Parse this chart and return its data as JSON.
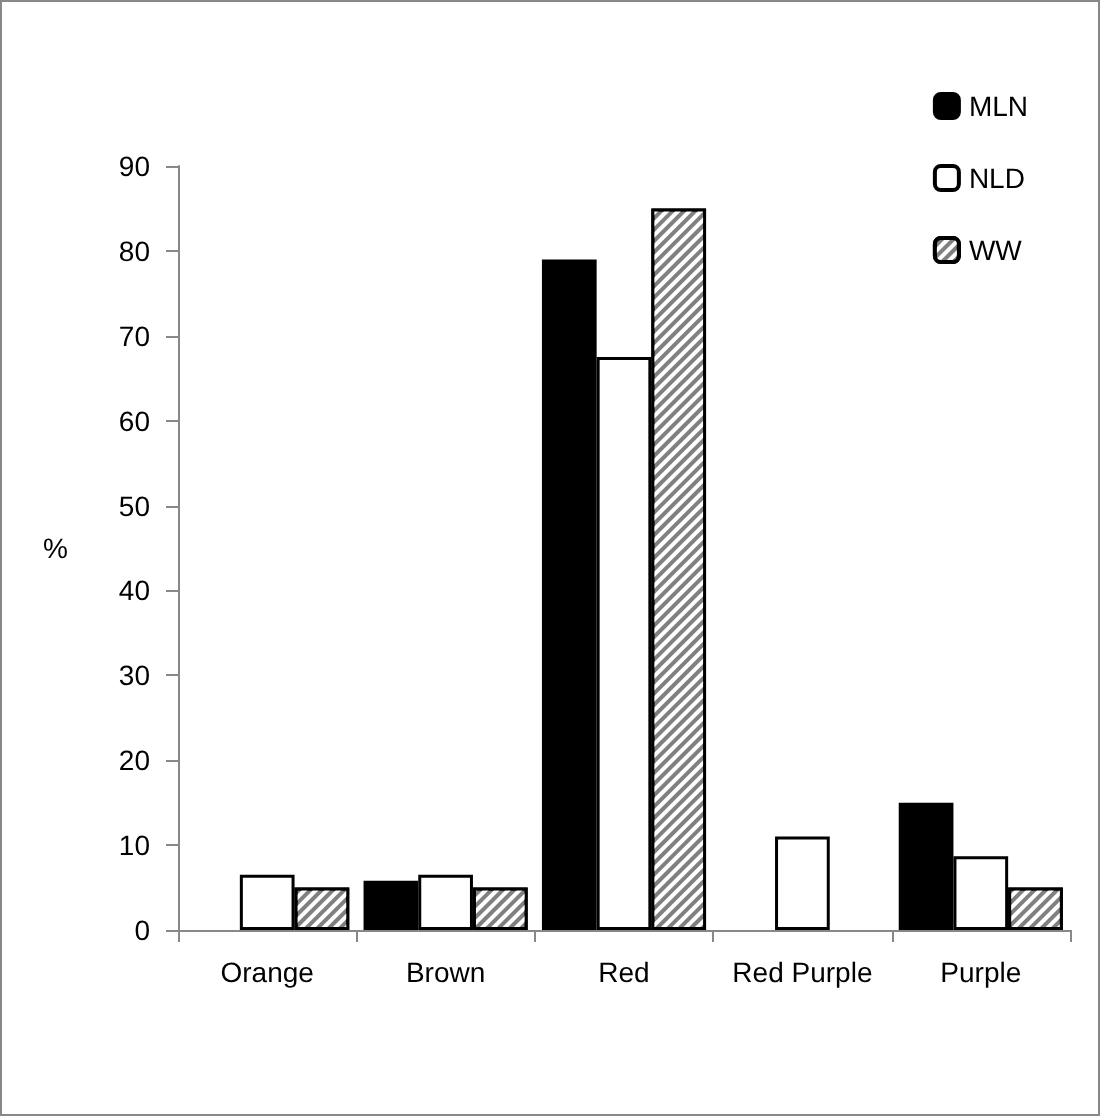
{
  "chart_data": {
    "type": "bar",
    "ylabel": "%",
    "categories": [
      "Orange",
      "Brown",
      "Red",
      "Red Purple",
      "Purple"
    ],
    "series": [
      {
        "name": "MLN",
        "color": "#000000",
        "values": [
          null,
          5.8,
          79,
          null,
          15
        ]
      },
      {
        "name": "NLD",
        "color": "#ffffff",
        "values": [
          6.5,
          6.5,
          67.5,
          11,
          8.7
        ]
      },
      {
        "name": "WW",
        "color": "#808080",
        "values": [
          5,
          5,
          85,
          null,
          5
        ]
      }
    ],
    "ylim": [
      0,
      90
    ],
    "yticks": [
      0,
      10,
      20,
      30,
      40,
      50,
      60,
      70,
      80,
      90
    ],
    "grid": false,
    "legend": "top right"
  }
}
